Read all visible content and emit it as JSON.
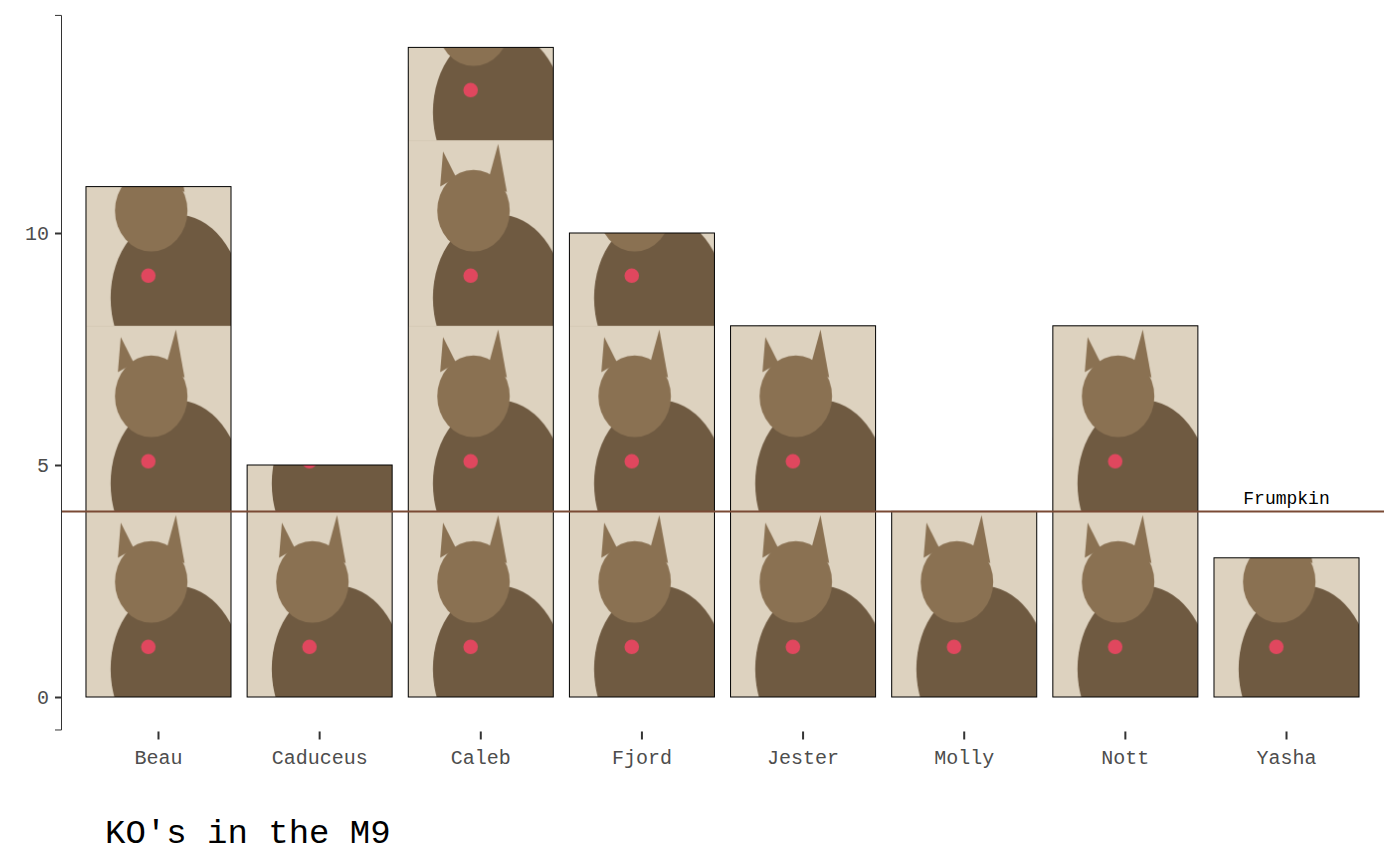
{
  "chart_data": {
    "type": "bar",
    "title": "KO's in the M9",
    "categories": [
      "Beau",
      "Caduceus",
      "Caleb",
      "Fjord",
      "Jester",
      "Molly",
      "Nott",
      "Yasha"
    ],
    "values": [
      11,
      5,
      14,
      10,
      8,
      4,
      8,
      3
    ],
    "reference_line": {
      "value": 4,
      "label": "Frumpkin",
      "color": "#7a4a35"
    },
    "ylim": [
      -0.7,
      14.7
    ],
    "yticks": [
      0,
      5,
      10
    ],
    "grid": false
  }
}
